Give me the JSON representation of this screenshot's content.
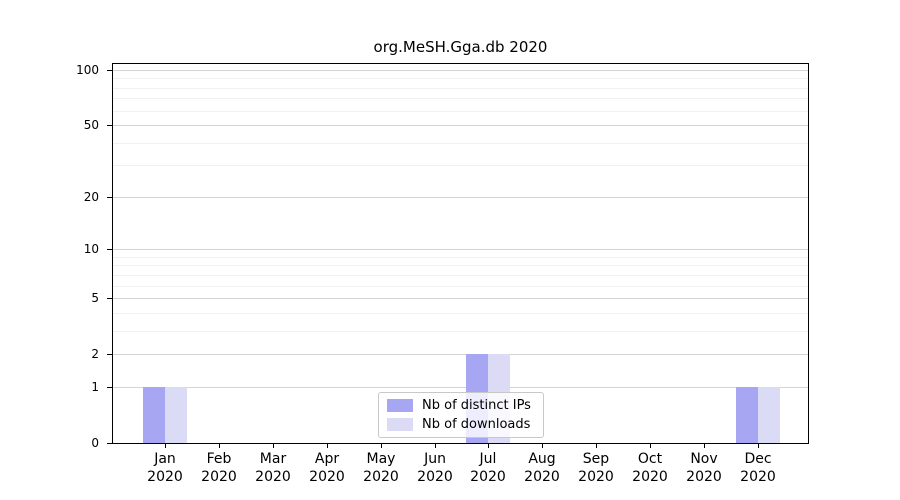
{
  "chart_data": {
    "type": "bar",
    "title": "org.MeSH.Gga.db 2020",
    "categories": [
      "Jan 2020",
      "Feb 2020",
      "Mar 2020",
      "Apr 2020",
      "May 2020",
      "Jun 2020",
      "Jul 2020",
      "Aug 2020",
      "Sep 2020",
      "Oct 2020",
      "Nov 2020",
      "Dec 2020"
    ],
    "series": [
      {
        "name": "Nb of distinct IPs",
        "color": "#a6a6f2",
        "values": [
          1,
          0,
          0,
          0,
          0,
          0,
          2,
          0,
          0,
          0,
          0,
          1
        ]
      },
      {
        "name": "Nb of downloads",
        "color": "#dbdbf6",
        "values": [
          1,
          0,
          0,
          0,
          0,
          0,
          2,
          0,
          0,
          0,
          0,
          1
        ]
      }
    ],
    "xlabel": "",
    "ylabel": "",
    "yscale": "log1p",
    "ylim": [
      0,
      109
    ],
    "yticks": [
      0,
      1,
      2,
      5,
      10,
      20,
      50,
      100
    ],
    "minor_gridlines": [
      3,
      4,
      6,
      7,
      8,
      9,
      30,
      40,
      60,
      70,
      80,
      90
    ],
    "grid": true,
    "legend_position": "bottom-center"
  },
  "colors": {
    "background": "#ffffff",
    "axis": "#000000",
    "gridline_major": "#d4d4d4",
    "gridline_minor": "#f1f1f1",
    "legend_border": "#c8c8c8"
  }
}
